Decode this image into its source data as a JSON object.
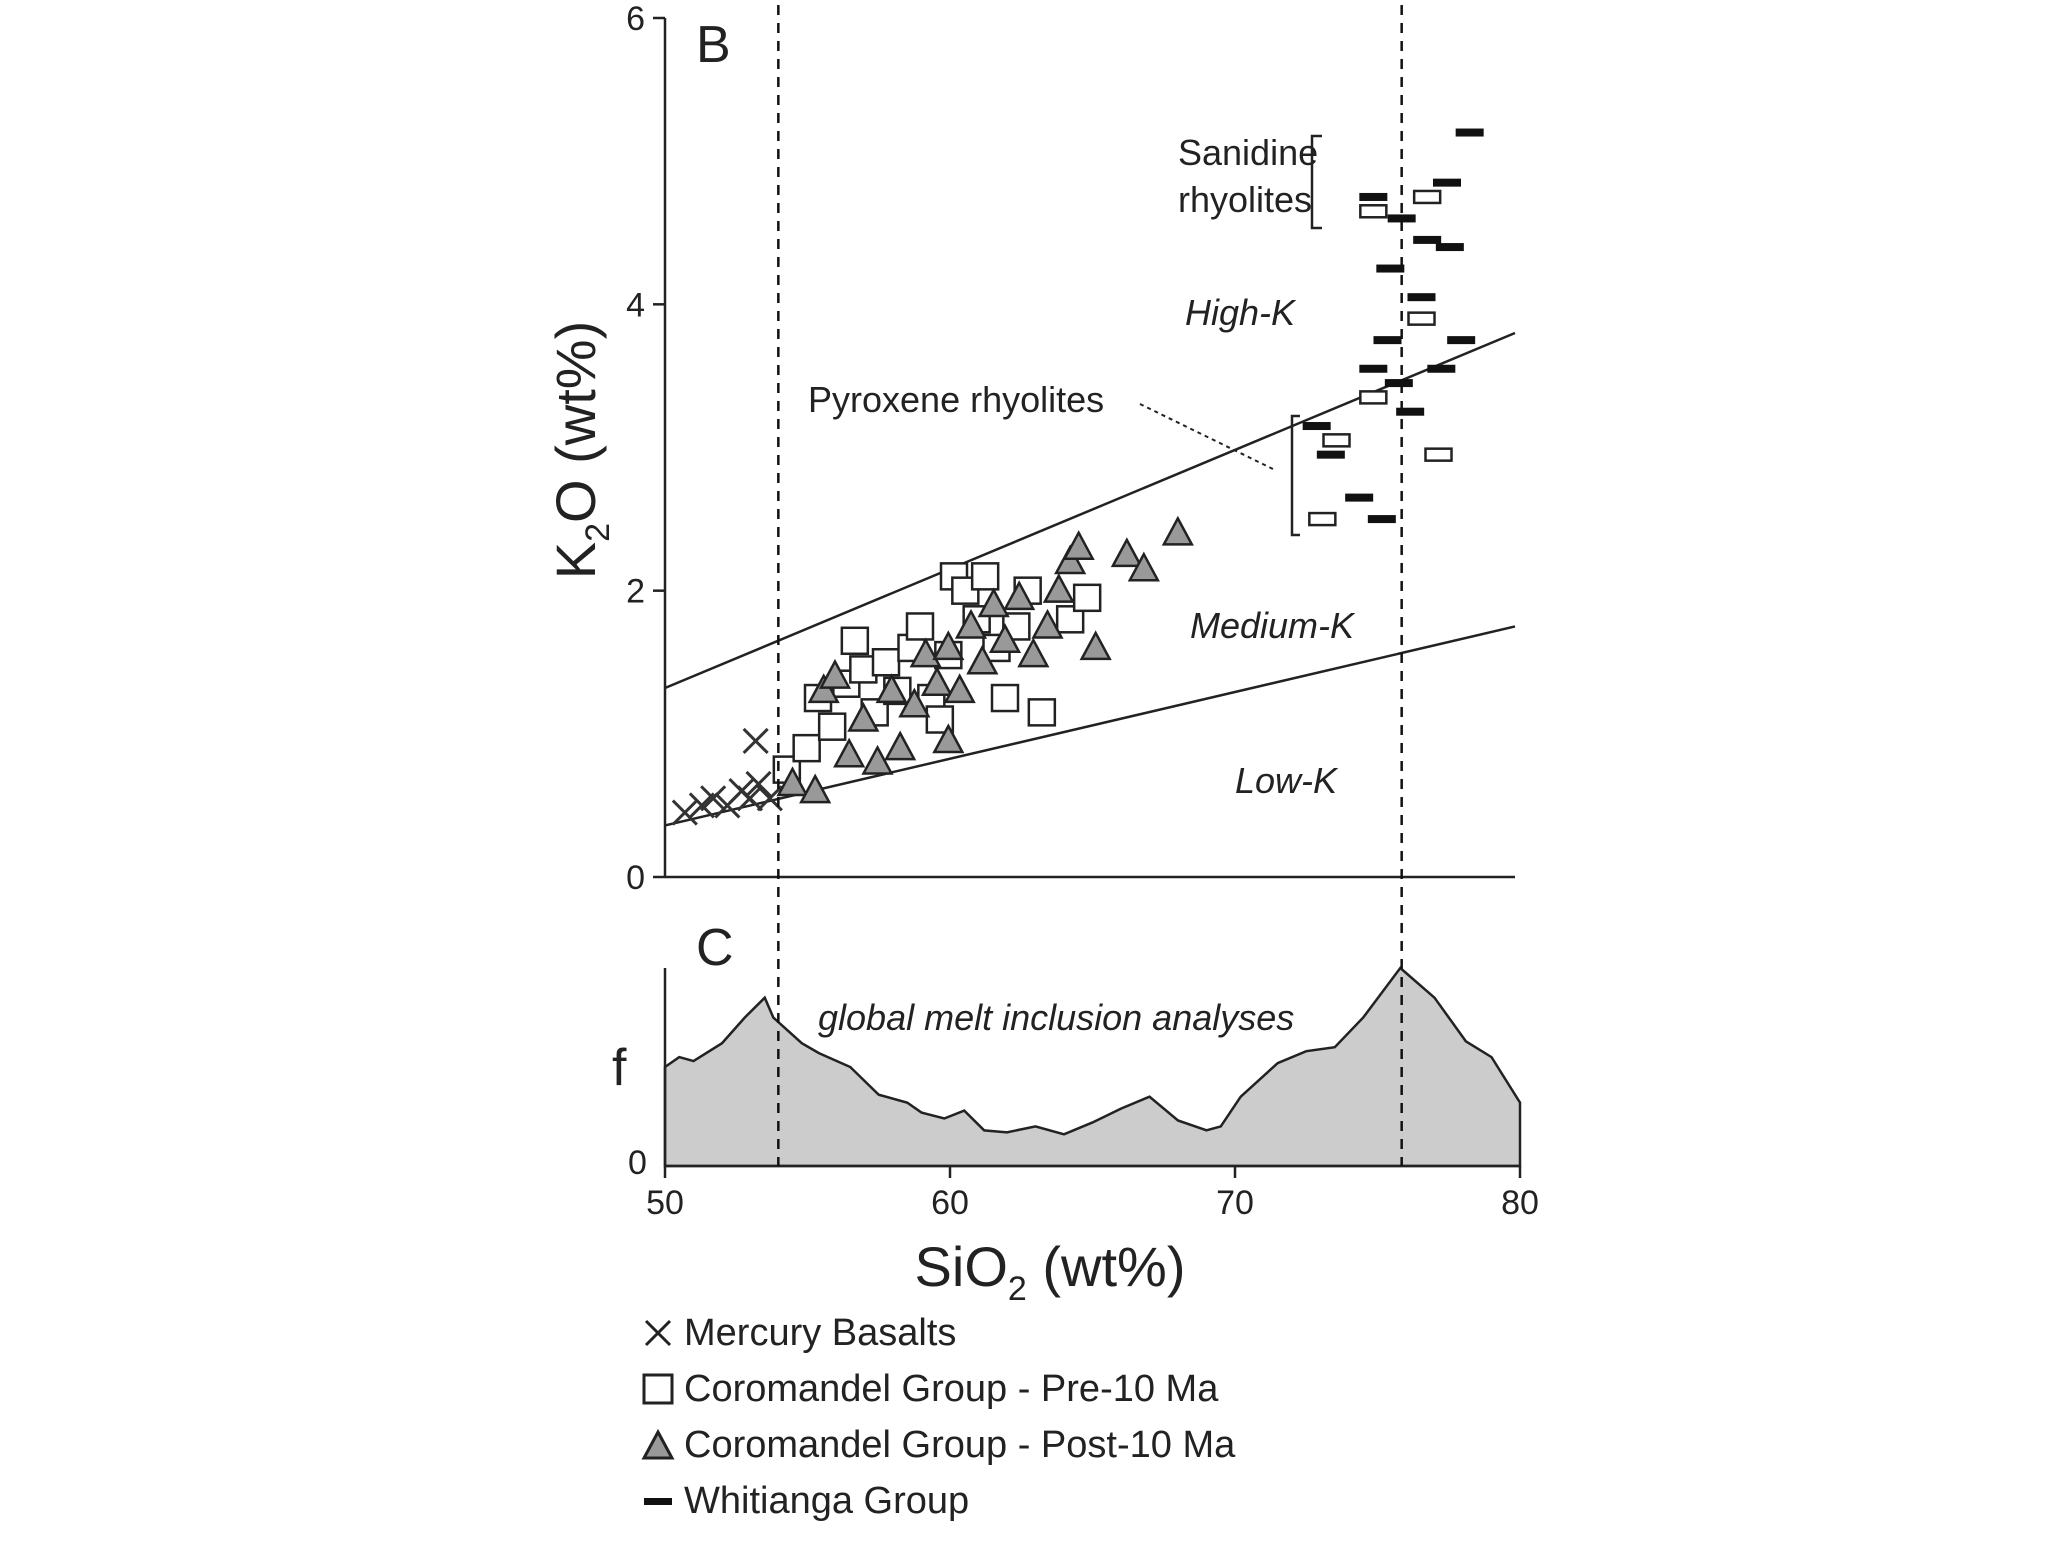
{
  "chart_data": [
    {
      "panel": "B",
      "type": "scatter",
      "xlim": [
        50,
        80
      ],
      "ylim": [
        0,
        6
      ],
      "ylabel": "K2O (wt%)",
      "y_ticks": [
        "0",
        "2",
        "4",
        "6"
      ],
      "grid": false,
      "region_labels": [
        "High-K",
        "Medium-K",
        "Low-K"
      ],
      "annotations": [
        "Sanidine rhyolites",
        "Pyroxene rhyolites"
      ],
      "vertical_reference_lines_x": [
        54,
        76
      ],
      "boundary_lines": [
        {
          "from": [
            50,
            1.32
          ],
          "to": [
            80,
            3.8
          ]
        },
        {
          "from": [
            50,
            0.36
          ],
          "to": [
            80,
            1.75
          ]
        }
      ],
      "series": [
        {
          "name": "Mercury Basalts",
          "marker": "x",
          "points": [
            [
              50.7,
              0.45
            ],
            [
              51.3,
              0.5
            ],
            [
              51.7,
              0.55
            ],
            [
              52.2,
              0.5
            ],
            [
              52.7,
              0.6
            ],
            [
              53.0,
              0.55
            ],
            [
              53.3,
              0.65
            ],
            [
              53.7,
              0.55
            ],
            [
              53.2,
              0.95
            ]
          ]
        },
        {
          "name": "Coromandel Group - Pre-10 Ma",
          "marker": "square",
          "points": [
            [
              54.3,
              0.75
            ],
            [
              55.0,
              0.9
            ],
            [
              55.4,
              1.25
            ],
            [
              55.9,
              1.05
            ],
            [
              56.4,
              1.35
            ],
            [
              56.7,
              1.65
            ],
            [
              57.0,
              1.45
            ],
            [
              57.4,
              1.15
            ],
            [
              57.8,
              1.5
            ],
            [
              58.2,
              1.3
            ],
            [
              58.7,
              1.6
            ],
            [
              59.0,
              1.75
            ],
            [
              59.4,
              1.25
            ],
            [
              59.7,
              1.1
            ],
            [
              60.0,
              1.55
            ],
            [
              60.2,
              2.1
            ],
            [
              60.6,
              2.0
            ],
            [
              61.0,
              1.8
            ],
            [
              61.3,
              2.1
            ],
            [
              61.7,
              1.6
            ],
            [
              62.0,
              1.25
            ],
            [
              62.4,
              1.75
            ],
            [
              62.8,
              2.0
            ],
            [
              63.3,
              1.15
            ],
            [
              64.3,
              1.8
            ],
            [
              64.9,
              1.95
            ],
            [
              73.2,
              2.5
            ],
            [
              73.7,
              3.05
            ],
            [
              75.0,
              4.65
            ],
            [
              75.0,
              3.35
            ],
            [
              76.7,
              3.9
            ],
            [
              76.9,
              4.75
            ],
            [
              77.3,
              2.95
            ]
          ]
        },
        {
          "name": "Coromandel Group - Post-10 Ma",
          "marker": "triangle",
          "points": [
            [
              54.5,
              0.65
            ],
            [
              55.3,
              0.6
            ],
            [
              55.6,
              1.3
            ],
            [
              56.0,
              1.4
            ],
            [
              56.5,
              0.85
            ],
            [
              57.0,
              1.1
            ],
            [
              57.5,
              0.8
            ],
            [
              58.0,
              1.3
            ],
            [
              58.3,
              0.9
            ],
            [
              58.8,
              1.2
            ],
            [
              59.2,
              1.55
            ],
            [
              59.6,
              1.35
            ],
            [
              60.0,
              1.6
            ],
            [
              60.4,
              1.3
            ],
            [
              60.8,
              1.75
            ],
            [
              61.2,
              1.5
            ],
            [
              61.6,
              1.9
            ],
            [
              62.0,
              1.65
            ],
            [
              62.5,
              1.95
            ],
            [
              63.0,
              1.55
            ],
            [
              63.5,
              1.75
            ],
            [
              63.9,
              2.0
            ],
            [
              64.3,
              2.2
            ],
            [
              64.6,
              2.3
            ],
            [
              65.2,
              1.6
            ],
            [
              66.3,
              2.25
            ],
            [
              66.9,
              2.15
            ],
            [
              68.1,
              2.4
            ],
            [
              60.0,
              0.95
            ]
          ]
        },
        {
          "name": "Whitianga Group",
          "marker": "dash",
          "points": [
            [
              73.0,
              3.15
            ],
            [
              73.5,
              2.95
            ],
            [
              74.5,
              2.65
            ],
            [
              75.0,
              4.75
            ],
            [
              75.0,
              3.55
            ],
            [
              75.3,
              2.5
            ],
            [
              75.5,
              3.75
            ],
            [
              75.6,
              4.25
            ],
            [
              75.9,
              3.45
            ],
            [
              76.0,
              4.6
            ],
            [
              76.3,
              3.25
            ],
            [
              76.7,
              4.05
            ],
            [
              76.9,
              4.45
            ],
            [
              77.4,
              3.55
            ],
            [
              77.6,
              4.85
            ],
            [
              77.7,
              4.4
            ],
            [
              78.1,
              3.75
            ],
            [
              78.4,
              5.2
            ]
          ]
        }
      ]
    },
    {
      "panel": "C",
      "type": "area",
      "xlim": [
        50,
        80
      ],
      "xlabel": "SiO2 (wt%)",
      "ylabel": "f",
      "x_ticks": [
        "50",
        "60",
        "70",
        "80"
      ],
      "y_ticks": [
        "0"
      ],
      "annotation": "global melt inclusion analyses",
      "vertical_reference_lines_x": [
        54,
        76
      ],
      "fill_color": "#cccccc",
      "x": [
        50,
        50.5,
        51,
        52,
        52.8,
        53.5,
        53.8,
        54.8,
        55.4,
        56.5,
        57.5,
        58.5,
        59.0,
        59.8,
        60.5,
        61.2,
        62.0,
        63.0,
        64.0,
        65.0,
        66.0,
        67.0,
        68.0,
        69.0,
        69.5,
        70.2,
        71.5,
        72.5,
        73.5,
        74.5,
        75.8,
        77.0,
        78.1,
        79.0,
        80.0
      ],
      "y": [
        0.5,
        0.55,
        0.53,
        0.62,
        0.75,
        0.85,
        0.75,
        0.62,
        0.57,
        0.5,
        0.36,
        0.32,
        0.27,
        0.24,
        0.28,
        0.18,
        0.17,
        0.2,
        0.16,
        0.22,
        0.29,
        0.35,
        0.23,
        0.18,
        0.2,
        0.35,
        0.52,
        0.58,
        0.6,
        0.75,
        1.0,
        0.85,
        0.63,
        0.55,
        0.32
      ]
    }
  ],
  "panel_b_letter": "B",
  "panel_c_letter": "C",
  "panel_b_ylabel_main": "K",
  "panel_b_ylabel_sub": "2",
  "panel_b_ylabel_rest": "O (wt%)",
  "panel_c_xlabel_main": "SiO",
  "panel_c_xlabel_sub": "2",
  "panel_c_xlabel_rest": " (wt%)",
  "sanidine_line1": "Sanidine",
  "sanidine_line2": "rhyolites",
  "pyroxene_label": "Pyroxene rhyolites",
  "high_k_label": "High-K",
  "medium_k_label": "Medium-K",
  "low_k_label": "Low-K",
  "melt_label": "global melt inclusion analyses",
  "f_label": "f",
  "legend": [
    {
      "icon": "x-marker-icon",
      "label": "Mercury Basalts"
    },
    {
      "icon": "square-marker-icon",
      "label": "Coromandel Group - Pre-10 Ma"
    },
    {
      "icon": "triangle-marker-icon",
      "label": "Coromandel Group - Post-10 Ma"
    },
    {
      "icon": "dash-marker-icon",
      "label": "Whitianga Group"
    }
  ]
}
